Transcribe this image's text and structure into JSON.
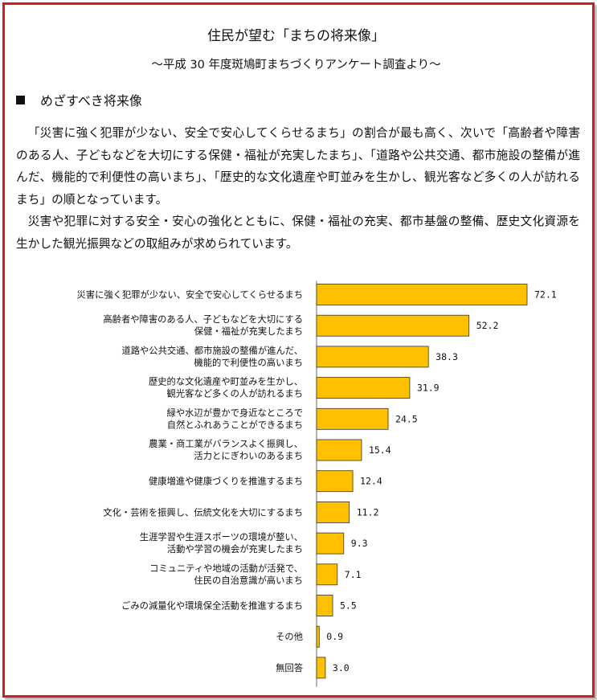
{
  "page": {
    "title": "住民が望む「まちの将来像」",
    "subtitle": "～平成 30 年度斑鳩町まちづくりアンケート調査より～",
    "section_heading": "めざすべき将来像",
    "paragraphs": [
      "「災害に強く犯罪が少ない、安全で安心してくらせるまち」の割合が最も高く、次いで「高齢者や障害のある人、子どもなどを大切にする保健・福祉が充実したまち」、「道路や公共交通、都市施設の整備が進んだ、機能的で利便性の高いまち」、「歴史的な文化遺産や町並みを生かし、観光客など多くの人が訪れるまち」の順となっています。",
      "災害や犯罪に対する安全・安心の強化とともに、保健・福祉の充実、都市基盤の整備、歴史文化資源を生かした観光振興などの取組みが求められています。"
    ]
  },
  "chart_data": {
    "type": "bar",
    "orientation": "horizontal",
    "categories": [
      [
        "災害に強く犯罪が少ない、安全で安心してくらせるまち"
      ],
      [
        "高齢者や障害のある人、子どもなどを大切にする",
        "保健・福祉が充実したまち"
      ],
      [
        "道路や公共交通、都市施設の整備が進んだ、",
        "機能的で利便性の高いまち"
      ],
      [
        "歴史的な文化遺産や町並みを生かし、",
        "観光客など多くの人が訪れるまち"
      ],
      [
        "緑や水辺が豊かで身近なところで",
        "自然とふれあうことができるまち"
      ],
      [
        "農業・商工業がバランスよく振興し、",
        "活力とにぎわいのあるまち"
      ],
      [
        "健康増進や健康づくりを推進するまち"
      ],
      [
        "文化・芸術を振興し、伝統文化を大切にするまち"
      ],
      [
        "生涯学習や生涯スポーツの環境が整い、",
        "活動や学習の機会が充実したまち"
      ],
      [
        "コミュニティや地域の活動が活発で、",
        "住民の自治意識が高いまち"
      ],
      [
        "ごみの減量化や環境保全活動を推進するまち"
      ],
      [
        "その他"
      ],
      [
        "無回答"
      ]
    ],
    "values": [
      72.1,
      52.2,
      38.3,
      31.9,
      24.5,
      15.4,
      12.4,
      11.2,
      9.3,
      7.1,
      5.5,
      0.9,
      3.0
    ],
    "value_labels": [
      "72.1",
      "52.2",
      "38.3",
      "31.9",
      "24.5",
      "15.4",
      "12.4",
      "11.2",
      "9.3",
      "7.1",
      "5.5",
      "0.9",
      "3.0"
    ],
    "xlim": [
      0,
      100
    ],
    "grid": false,
    "legend": "none",
    "bar_color": "#ffc000"
  }
}
